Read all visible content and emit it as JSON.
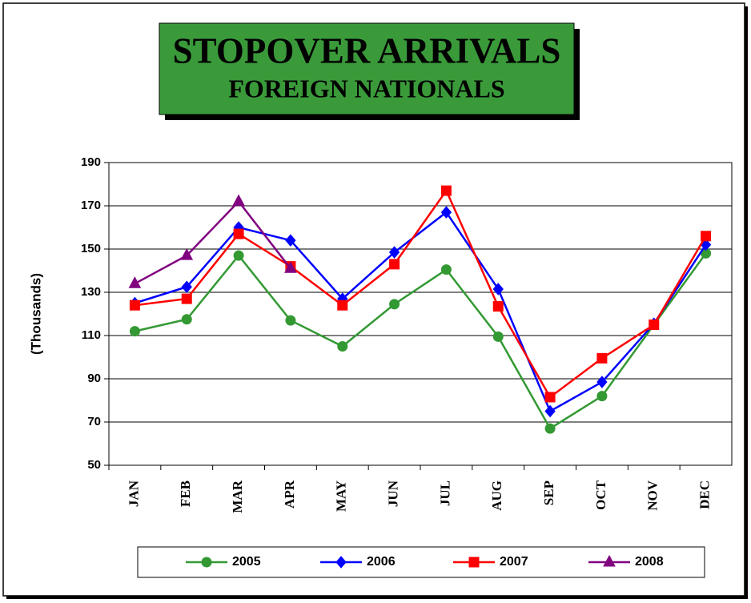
{
  "chart_data": {
    "type": "line",
    "title": "STOPOVER ARRIVALS",
    "subtitle": "FOREIGN NATIONALS",
    "y_label": "(Thousands)",
    "categories": [
      "JAN",
      "FEB",
      "MAR",
      "APR",
      "MAY",
      "JUN",
      "JUL",
      "AUG",
      "SEP",
      "OCT",
      "NOV",
      "DEC"
    ],
    "series": [
      {
        "name": "2005",
        "color": "#339933",
        "marker": "circle",
        "values": [
          112,
          117.5,
          147,
          117,
          105,
          124.5,
          140.5,
          109.5,
          67,
          82,
          115,
          148
        ]
      },
      {
        "name": "2006",
        "color": "#0000ff",
        "marker": "diamond",
        "values": [
          125,
          132.5,
          160,
          154,
          127,
          148.5,
          167,
          131.5,
          75,
          88.5,
          115.5,
          152
        ]
      },
      {
        "name": "2007",
        "color": "#ff0000",
        "marker": "square",
        "values": [
          124,
          127,
          157,
          142,
          124,
          143,
          177,
          123.5,
          81.5,
          99.5,
          115,
          156
        ]
      },
      {
        "name": "2008",
        "color": "#800080",
        "marker": "triangle",
        "values": [
          134,
          147,
          172,
          141,
          null,
          null,
          null,
          null,
          null,
          null,
          null,
          null
        ]
      }
    ],
    "ylim": [
      50,
      190
    ],
    "yticks": [
      50,
      70,
      90,
      110,
      130,
      150,
      170,
      190
    ],
    "grid": true,
    "legend": "bottom"
  }
}
